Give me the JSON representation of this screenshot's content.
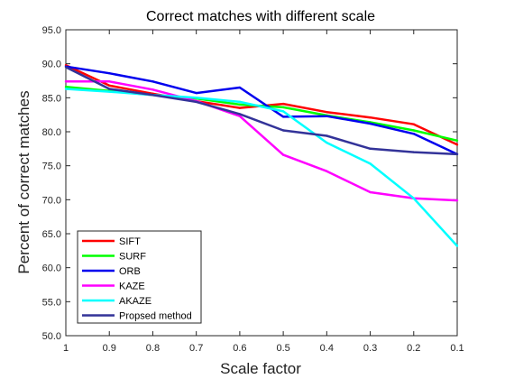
{
  "chart_data": {
    "type": "line",
    "title": "Correct matches with different scale",
    "xlabel": "Scale factor",
    "ylabel": "Percent of correct matches",
    "x": [
      1,
      0.9,
      0.8,
      0.7,
      0.6,
      0.5,
      0.4,
      0.3,
      0.2,
      0.1
    ],
    "x_tick_labels": [
      "1",
      "0.9",
      "0.8",
      "0.7",
      "0.6",
      "0.5",
      "0.4",
      "0.3",
      "0.2",
      "0.1"
    ],
    "y_tick_labels": [
      "50.0",
      "55.0",
      "60.0",
      "65.0",
      "70.0",
      "75.0",
      "80.0",
      "85.0",
      "90.0",
      "95.0"
    ],
    "x_reversed": true,
    "xlim": [
      1,
      0.1
    ],
    "ylim": [
      50,
      95
    ],
    "grid": false,
    "legend_position": "bottom-left",
    "series": [
      {
        "name": "SIFT",
        "color": "#ff0000",
        "values": [
          89.8,
          86.8,
          85.6,
          84.5,
          83.5,
          84.1,
          82.9,
          82.1,
          81.1,
          78.1
        ]
      },
      {
        "name": "SURF",
        "color": "#00ff00",
        "values": [
          86.6,
          86.0,
          85.4,
          84.9,
          84.0,
          83.6,
          82.4,
          81.4,
          80.2,
          78.7
        ]
      },
      {
        "name": "ORB",
        "color": "#0000ee",
        "values": [
          89.6,
          88.6,
          87.4,
          85.7,
          86.5,
          82.2,
          82.3,
          81.2,
          79.7,
          76.7
        ]
      },
      {
        "name": "KAZE",
        "color": "#ff00ff",
        "values": [
          87.4,
          87.4,
          86.2,
          84.5,
          82.3,
          76.6,
          74.2,
          71.1,
          70.2,
          69.9
        ]
      },
      {
        "name": "AKAZE",
        "color": "#00ffff",
        "values": [
          86.3,
          85.9,
          85.4,
          85.0,
          84.4,
          83.0,
          78.4,
          75.3,
          70.2,
          63.2
        ]
      },
      {
        "name": "Propsed method",
        "color": "#333399",
        "values": [
          89.5,
          86.3,
          85.4,
          84.4,
          82.6,
          80.2,
          79.4,
          77.5,
          77.0,
          76.7
        ]
      }
    ]
  }
}
